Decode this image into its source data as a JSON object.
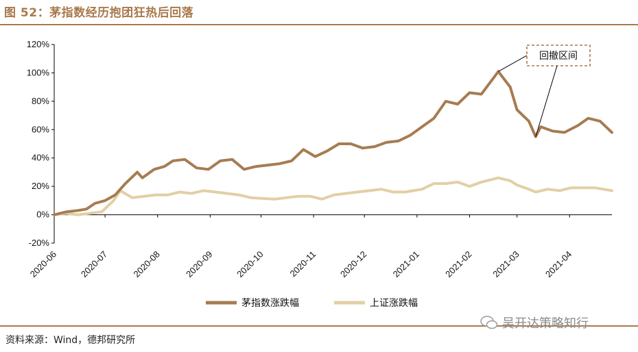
{
  "header": {
    "title": "图 52：茅指数经历抱团狂热后回落"
  },
  "footer": {
    "source": "资料来源：Wind，德邦研究所",
    "watermark": "吴开达策略知行"
  },
  "colors": {
    "accent": "#a9794c",
    "series1": "#a67c52",
    "series2": "#e2cfa5"
  },
  "chart_data": {
    "type": "line",
    "title": "",
    "xlabel": "",
    "ylabel": "",
    "ylim": [
      -20,
      120
    ],
    "yticks": [
      "-20%",
      "0%",
      "20%",
      "40%",
      "60%",
      "80%",
      "100%",
      "120%"
    ],
    "yticks_values": [
      -20,
      0,
      20,
      40,
      60,
      80,
      100,
      120
    ],
    "xticks": [
      "2020-06",
      "2020-07",
      "2020-08",
      "2020-09",
      "2020-10",
      "2020-11",
      "2020-12",
      "2021-01",
      "2021-02",
      "2021-03",
      "2021-04"
    ],
    "xlim": [
      "2020-06-01",
      "2021-04-26"
    ],
    "legend": "bottom",
    "annotation": "回撤区间",
    "series": [
      {
        "name": "茅指数涨跌幅",
        "points": [
          [
            "2020-06-01",
            0
          ],
          [
            "2020-06-08",
            2
          ],
          [
            "2020-06-15",
            3
          ],
          [
            "2020-06-20",
            4
          ],
          [
            "2020-06-25",
            8
          ],
          [
            "2020-07-01",
            10
          ],
          [
            "2020-07-07",
            14
          ],
          [
            "2020-07-13",
            22
          ],
          [
            "2020-07-20",
            30
          ],
          [
            "2020-07-23",
            26
          ],
          [
            "2020-07-30",
            32
          ],
          [
            "2020-08-05",
            34
          ],
          [
            "2020-08-10",
            38
          ],
          [
            "2020-08-17",
            39
          ],
          [
            "2020-08-24",
            33
          ],
          [
            "2020-08-31",
            32
          ],
          [
            "2020-09-07",
            38
          ],
          [
            "2020-09-14",
            39
          ],
          [
            "2020-09-21",
            32
          ],
          [
            "2020-09-28",
            34
          ],
          [
            "2020-10-05",
            35
          ],
          [
            "2020-10-12",
            36
          ],
          [
            "2020-10-19",
            38
          ],
          [
            "2020-10-26",
            46
          ],
          [
            "2020-11-02",
            41
          ],
          [
            "2020-11-09",
            45
          ],
          [
            "2020-11-16",
            50
          ],
          [
            "2020-11-23",
            50
          ],
          [
            "2020-11-30",
            47
          ],
          [
            "2020-12-07",
            48
          ],
          [
            "2020-12-14",
            51
          ],
          [
            "2020-12-21",
            52
          ],
          [
            "2020-12-28",
            56
          ],
          [
            "2021-01-04",
            62
          ],
          [
            "2021-01-11",
            68
          ],
          [
            "2021-01-18",
            80
          ],
          [
            "2021-01-25",
            78
          ],
          [
            "2021-02-01",
            86
          ],
          [
            "2021-02-08",
            85
          ],
          [
            "2021-02-18",
            101
          ],
          [
            "2021-02-25",
            90
          ],
          [
            "2021-03-01",
            74
          ],
          [
            "2021-03-08",
            66
          ],
          [
            "2021-03-12",
            55
          ],
          [
            "2021-03-15",
            62
          ],
          [
            "2021-03-22",
            59
          ],
          [
            "2021-03-29",
            58
          ],
          [
            "2021-04-06",
            63
          ],
          [
            "2021-04-12",
            68
          ],
          [
            "2021-04-19",
            66
          ],
          [
            "2021-04-26",
            58
          ]
        ]
      },
      {
        "name": "上证涨跌幅",
        "points": [
          [
            "2020-06-01",
            0
          ],
          [
            "2020-06-08",
            1
          ],
          [
            "2020-06-15",
            0
          ],
          [
            "2020-06-22",
            1
          ],
          [
            "2020-06-29",
            2
          ],
          [
            "2020-07-06",
            10
          ],
          [
            "2020-07-10",
            17
          ],
          [
            "2020-07-17",
            12
          ],
          [
            "2020-07-24",
            13
          ],
          [
            "2020-07-31",
            14
          ],
          [
            "2020-08-07",
            14
          ],
          [
            "2020-08-14",
            16
          ],
          [
            "2020-08-21",
            15
          ],
          [
            "2020-08-28",
            17
          ],
          [
            "2020-09-04",
            16
          ],
          [
            "2020-09-11",
            15
          ],
          [
            "2020-09-18",
            14
          ],
          [
            "2020-09-25",
            12
          ],
          [
            "2020-10-09",
            11
          ],
          [
            "2020-10-16",
            12
          ],
          [
            "2020-10-23",
            13
          ],
          [
            "2020-10-30",
            13
          ],
          [
            "2020-11-06",
            11
          ],
          [
            "2020-11-13",
            14
          ],
          [
            "2020-11-20",
            15
          ],
          [
            "2020-11-27",
            16
          ],
          [
            "2020-12-04",
            17
          ],
          [
            "2020-12-11",
            18
          ],
          [
            "2020-12-18",
            16
          ],
          [
            "2020-12-25",
            16
          ],
          [
            "2021-01-04",
            18
          ],
          [
            "2021-01-11",
            22
          ],
          [
            "2021-01-18",
            22
          ],
          [
            "2021-01-25",
            23
          ],
          [
            "2021-02-01",
            20
          ],
          [
            "2021-02-08",
            23
          ],
          [
            "2021-02-18",
            26
          ],
          [
            "2021-02-25",
            24
          ],
          [
            "2021-03-01",
            21
          ],
          [
            "2021-03-08",
            18
          ],
          [
            "2021-03-12",
            16
          ],
          [
            "2021-03-19",
            18
          ],
          [
            "2021-03-26",
            17
          ],
          [
            "2021-04-02",
            19
          ],
          [
            "2021-04-09",
            19
          ],
          [
            "2021-04-16",
            19
          ],
          [
            "2021-04-26",
            17
          ]
        ]
      }
    ]
  }
}
